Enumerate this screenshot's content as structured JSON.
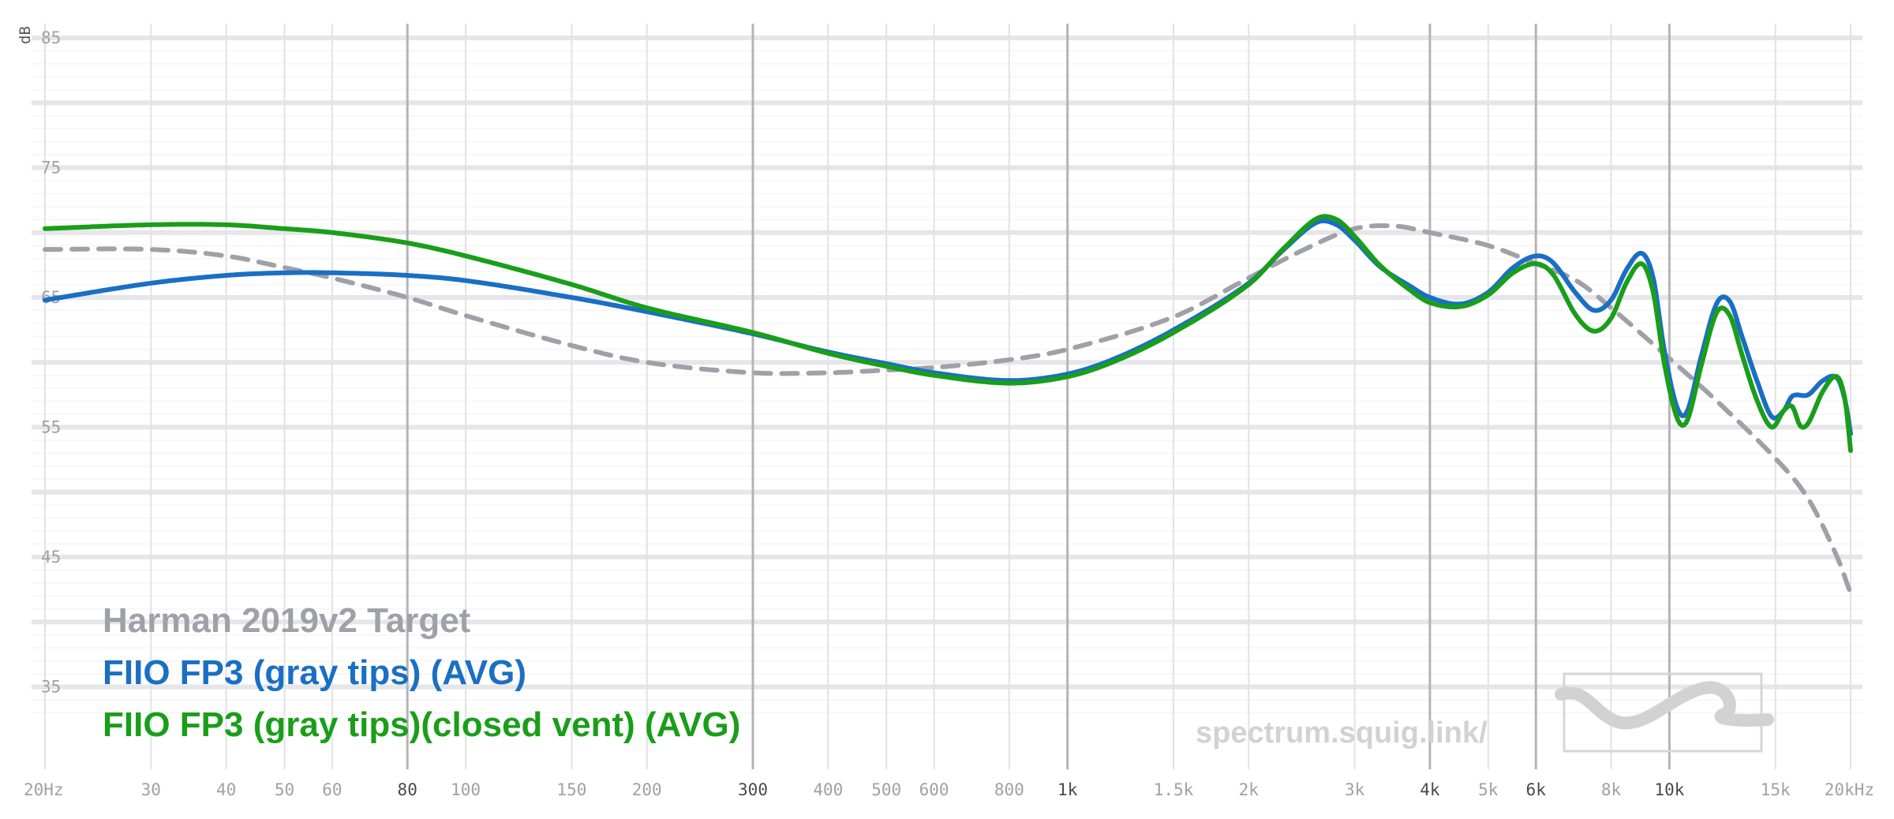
{
  "chart_data": {
    "type": "line",
    "title": "",
    "xlabel": "",
    "ylabel": "dB",
    "x_scale": "log",
    "xlim": [
      20,
      20000
    ],
    "ylim": [
      31,
      85
    ],
    "grid": true,
    "legend_position": "bottom-left",
    "x_ticks": [
      {
        "value": 20,
        "label": "20Hz",
        "major": false
      },
      {
        "value": 30,
        "label": "30",
        "major": false
      },
      {
        "value": 40,
        "label": "40",
        "major": false
      },
      {
        "value": 50,
        "label": "50",
        "major": false
      },
      {
        "value": 60,
        "label": "60",
        "major": false
      },
      {
        "value": 80,
        "label": "80",
        "major": true
      },
      {
        "value": 100,
        "label": "100",
        "major": false
      },
      {
        "value": 150,
        "label": "150",
        "major": false
      },
      {
        "value": 200,
        "label": "200",
        "major": false
      },
      {
        "value": 300,
        "label": "300",
        "major": true
      },
      {
        "value": 400,
        "label": "400",
        "major": false
      },
      {
        "value": 500,
        "label": "500",
        "major": false
      },
      {
        "value": 600,
        "label": "600",
        "major": false
      },
      {
        "value": 800,
        "label": "800",
        "major": false
      },
      {
        "value": 1000,
        "label": "1k",
        "major": true
      },
      {
        "value": 1500,
        "label": "1.5k",
        "major": false
      },
      {
        "value": 2000,
        "label": "2k",
        "major": false
      },
      {
        "value": 3000,
        "label": "3k",
        "major": false
      },
      {
        "value": 4000,
        "label": "4k",
        "major": true
      },
      {
        "value": 5000,
        "label": "5k",
        "major": false
      },
      {
        "value": 6000,
        "label": "6k",
        "major": true
      },
      {
        "value": 8000,
        "label": "8k",
        "major": false
      },
      {
        "value": 10000,
        "label": "10k",
        "major": true
      },
      {
        "value": 15000,
        "label": "15k",
        "major": false
      },
      {
        "value": 20000,
        "label": "20kHz",
        "major": false
      }
    ],
    "y_ticks": [
      {
        "value": 85,
        "label": "85"
      },
      {
        "value": 75,
        "label": "75"
      },
      {
        "value": 65,
        "label": "65"
      },
      {
        "value": 55,
        "label": "55"
      },
      {
        "value": 45,
        "label": "45"
      },
      {
        "value": 35,
        "label": "35"
      }
    ],
    "series": [
      {
        "name": "Harman 2019v2 Target",
        "color": "#a0a0a8",
        "dashed": true,
        "points": [
          [
            20,
            68.7
          ],
          [
            30,
            68.7
          ],
          [
            40,
            68.2
          ],
          [
            50,
            67.3
          ],
          [
            60,
            66.5
          ],
          [
            80,
            65.0
          ],
          [
            100,
            63.6
          ],
          [
            150,
            61.3
          ],
          [
            200,
            60.0
          ],
          [
            300,
            59.2
          ],
          [
            400,
            59.2
          ],
          [
            500,
            59.4
          ],
          [
            600,
            59.6
          ],
          [
            800,
            60.2
          ],
          [
            1000,
            61.0
          ],
          [
            1500,
            63.5
          ],
          [
            2000,
            66.5
          ],
          [
            2500,
            68.8
          ],
          [
            3000,
            70.3
          ],
          [
            3500,
            70.5
          ],
          [
            4000,
            70.0
          ],
          [
            5000,
            69.0
          ],
          [
            6000,
            67.6
          ],
          [
            7000,
            66.3
          ],
          [
            8000,
            64.2
          ],
          [
            10000,
            60.3
          ],
          [
            12000,
            57.0
          ],
          [
            15000,
            52.6
          ],
          [
            17000,
            49.5
          ],
          [
            19000,
            45.0
          ],
          [
            20000,
            42.2
          ]
        ]
      },
      {
        "name": "FIIO FP3 (gray tips) (AVG)",
        "color": "#1a6fc4",
        "dashed": false,
        "points": [
          [
            20,
            64.8
          ],
          [
            30,
            66.1
          ],
          [
            40,
            66.7
          ],
          [
            50,
            66.9
          ],
          [
            60,
            66.9
          ],
          [
            80,
            66.7
          ],
          [
            100,
            66.3
          ],
          [
            150,
            65.0
          ],
          [
            200,
            63.9
          ],
          [
            300,
            62.2
          ],
          [
            400,
            60.8
          ],
          [
            500,
            59.9
          ],
          [
            600,
            59.2
          ],
          [
            800,
            58.6
          ],
          [
            1000,
            59.1
          ],
          [
            1200,
            60.3
          ],
          [
            1500,
            62.5
          ],
          [
            2000,
            66.1
          ],
          [
            2300,
            68.8
          ],
          [
            2600,
            70.8
          ],
          [
            2800,
            70.6
          ],
          [
            3000,
            69.4
          ],
          [
            3300,
            67.4
          ],
          [
            3700,
            65.9
          ],
          [
            4000,
            65.0
          ],
          [
            4500,
            64.5
          ],
          [
            5000,
            65.4
          ],
          [
            5500,
            67.3
          ],
          [
            6000,
            68.2
          ],
          [
            6400,
            67.7
          ],
          [
            7000,
            65.3
          ],
          [
            7500,
            64.0
          ],
          [
            8000,
            64.8
          ],
          [
            8500,
            67.2
          ],
          [
            9000,
            68.4
          ],
          [
            9400,
            66.5
          ],
          [
            9800,
            61.0
          ],
          [
            10300,
            56.5
          ],
          [
            10700,
            56.2
          ],
          [
            11300,
            60.5
          ],
          [
            12000,
            64.6
          ],
          [
            12600,
            64.7
          ],
          [
            13200,
            62.0
          ],
          [
            14000,
            58.5
          ],
          [
            14800,
            55.8
          ],
          [
            15500,
            56.3
          ],
          [
            16000,
            57.4
          ],
          [
            17000,
            57.5
          ],
          [
            18000,
            58.6
          ],
          [
            19000,
            58.8
          ],
          [
            19600,
            57.0
          ],
          [
            20000,
            54.5
          ]
        ]
      },
      {
        "name": "FIIO FP3 (gray tips)(closed vent) (AVG)",
        "color": "#1a9e1a",
        "dashed": false,
        "points": [
          [
            20,
            70.3
          ],
          [
            30,
            70.6
          ],
          [
            40,
            70.6
          ],
          [
            50,
            70.3
          ],
          [
            60,
            70.0
          ],
          [
            80,
            69.2
          ],
          [
            100,
            68.2
          ],
          [
            150,
            66.0
          ],
          [
            200,
            64.2
          ],
          [
            300,
            62.3
          ],
          [
            400,
            60.7
          ],
          [
            500,
            59.7
          ],
          [
            600,
            59.0
          ],
          [
            800,
            58.4
          ],
          [
            1000,
            58.9
          ],
          [
            1200,
            60.1
          ],
          [
            1500,
            62.3
          ],
          [
            2000,
            66.0
          ],
          [
            2300,
            68.9
          ],
          [
            2600,
            71.1
          ],
          [
            2800,
            71.0
          ],
          [
            3000,
            69.7
          ],
          [
            3300,
            67.5
          ],
          [
            3700,
            65.6
          ],
          [
            4000,
            64.6
          ],
          [
            4500,
            64.3
          ],
          [
            5000,
            65.2
          ],
          [
            5500,
            66.9
          ],
          [
            6000,
            67.6
          ],
          [
            6400,
            66.8
          ],
          [
            7000,
            63.6
          ],
          [
            7500,
            62.4
          ],
          [
            8000,
            63.4
          ],
          [
            8500,
            66.2
          ],
          [
            9000,
            67.6
          ],
          [
            9400,
            65.4
          ],
          [
            9800,
            60.0
          ],
          [
            10300,
            55.7
          ],
          [
            10700,
            55.5
          ],
          [
            11300,
            59.8
          ],
          [
            12000,
            63.9
          ],
          [
            12600,
            63.6
          ],
          [
            13200,
            60.6
          ],
          [
            14000,
            57.0
          ],
          [
            14800,
            55.0
          ],
          [
            15500,
            56.3
          ],
          [
            16000,
            56.6
          ],
          [
            16500,
            55.1
          ],
          [
            17000,
            55.3
          ],
          [
            18000,
            57.8
          ],
          [
            19000,
            58.9
          ],
          [
            19600,
            57.0
          ],
          [
            20000,
            53.2
          ]
        ]
      }
    ]
  },
  "legend": {
    "items": [
      {
        "label": "Harman 2019v2 Target",
        "color": "#a0a0a8"
      },
      {
        "label": "FIIO FP3 (gray tips) (AVG)",
        "color": "#1a6fc4"
      },
      {
        "label": "FIIO FP3 (gray tips)(closed vent) (AVG)",
        "color": "#1a9e1a"
      }
    ]
  },
  "watermark": {
    "text": "spectrum.squig.link/",
    "logo_icon": "squiggle-logo-icon"
  }
}
